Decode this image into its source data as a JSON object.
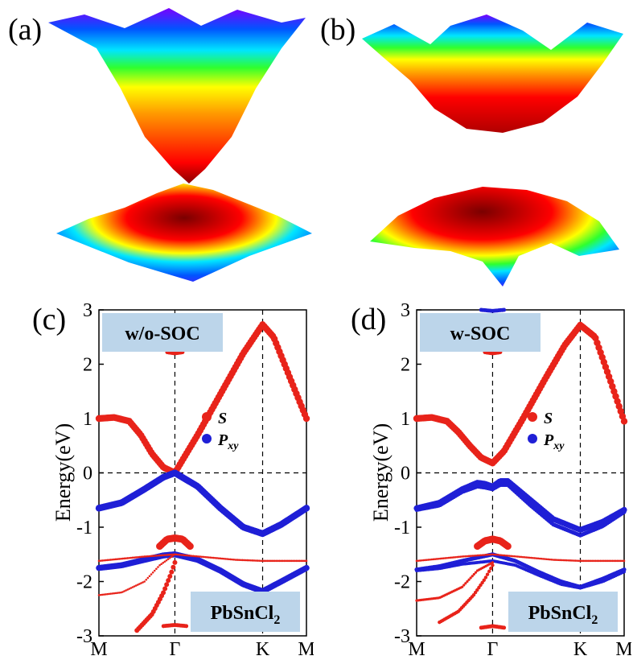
{
  "figure": {
    "panel_labels": [
      "(a)",
      "(b)",
      "(c)",
      "(d)"
    ],
    "colormap": [
      "#ff0000",
      "#ff7f00",
      "#ffff00",
      "#2fff2f",
      "#00e5ff",
      "#0055ff",
      "#6a00ff"
    ],
    "surface_panels": [
      {
        "label": "(a)",
        "gap": "closed"
      },
      {
        "label": "(b)",
        "gap": "open"
      }
    ]
  },
  "chart_data": [
    {
      "type": "scatter",
      "panel": "(c)",
      "condition_label": "w/o-SOC",
      "material": "PbSnCl",
      "material_subscript": "2",
      "ylabel": "Energy(eV)",
      "ylim": [
        -3,
        3
      ],
      "yticks": [
        "3",
        "2",
        "1",
        "0",
        "-1",
        "-2",
        "-3"
      ],
      "xticks": [
        "M",
        "Γ",
        "K",
        "M"
      ],
      "xpath": [
        0,
        1,
        2.155,
        2.732
      ],
      "fermi_level": 0,
      "legend": {
        "s": "S",
        "p": "P",
        "p_subscript": "xy"
      },
      "series_colors": {
        "s": "#e8231a",
        "p": "#1f1fd6"
      },
      "bands": [
        {
          "x": [
            0,
            0.2,
            0.4,
            0.55,
            0.7,
            0.85,
            1.0,
            1.3,
            1.6,
            1.9,
            2.155,
            2.3,
            2.5,
            2.732
          ],
          "y": [
            1.0,
            1.02,
            0.95,
            0.7,
            0.35,
            0.1,
            0.0,
            0.7,
            1.45,
            2.2,
            2.73,
            2.5,
            1.8,
            1.0
          ],
          "color": "s",
          "size": 4.2
        },
        {
          "x": [
            0,
            0.3,
            0.6,
            0.85,
            1.0,
            1.3,
            1.6,
            1.9,
            2.155,
            2.4,
            2.732
          ],
          "y": [
            -0.65,
            -0.55,
            -0.3,
            -0.08,
            0.0,
            -0.25,
            -0.65,
            -1.0,
            -1.12,
            -0.95,
            -0.65
          ],
          "color": "p",
          "size": 4.2
        },
        {
          "x": [
            0,
            0.3,
            0.6,
            0.85,
            1.0,
            1.3,
            1.6,
            1.9,
            2.155,
            2.4,
            2.732
          ],
          "y": [
            -1.75,
            -1.7,
            -1.6,
            -1.52,
            -1.5,
            -1.6,
            -1.8,
            -2.05,
            -2.18,
            -2.0,
            -1.75
          ],
          "color": "p",
          "size": 3.8
        },
        {
          "x": [
            0.8,
            0.9,
            1.0,
            1.1,
            1.2
          ],
          "y": [
            -1.35,
            -1.22,
            -1.2,
            -1.22,
            -1.35
          ],
          "color": "s",
          "size": 4.5
        },
        {
          "x": [
            0,
            0.3,
            0.6,
            1.0,
            1.4,
            1.8,
            2.155,
            2.5,
            2.732
          ],
          "y": [
            -1.62,
            -1.58,
            -1.54,
            -1.5,
            -1.55,
            -1.6,
            -1.62,
            -1.62,
            -1.62
          ],
          "color": "s",
          "size": 1.3
        },
        {
          "x": [
            0,
            0.3,
            0.6,
            0.8,
            1.0
          ],
          "y": [
            -2.25,
            -2.2,
            -2.0,
            -1.7,
            -1.5
          ],
          "color": "s",
          "size": 1.3
        },
        {
          "x": [
            0.5,
            0.7,
            0.85,
            0.95,
            1.0
          ],
          "y": [
            -2.9,
            -2.6,
            -2.2,
            -1.85,
            -1.65
          ],
          "color": "s",
          "size": 3.0
        },
        {
          "x": [
            0.9,
            1.0,
            1.1
          ],
          "y": [
            2.22,
            2.2,
            2.22
          ],
          "color": "s",
          "size": 2.5
        },
        {
          "x": [
            0.85,
            1.0,
            1.15
          ],
          "y": [
            -2.82,
            -2.8,
            -2.82
          ],
          "color": "s",
          "size": 2.5
        }
      ]
    },
    {
      "type": "scatter",
      "panel": "(d)",
      "condition_label": "w-SOC",
      "material": "PbSnCl",
      "material_subscript": "2",
      "ylabel": "Energy(eV)",
      "ylim": [
        -3,
        3
      ],
      "yticks": [
        "3",
        "2",
        "1",
        "0",
        "-1",
        "-2",
        "-3"
      ],
      "xticks": [
        "M",
        "Γ",
        "K",
        "M"
      ],
      "xpath": [
        0,
        1,
        2.155,
        2.732
      ],
      "fermi_level": 0,
      "legend": {
        "s": "S",
        "p": "P",
        "p_subscript": "xy"
      },
      "series_colors": {
        "s": "#e8231a",
        "p": "#1f1fd6"
      },
      "bands": [
        {
          "x": [
            0,
            0.2,
            0.4,
            0.55,
            0.7,
            0.85,
            1.0,
            1.15,
            1.4,
            1.7,
            1.95,
            2.155,
            2.35,
            2.55,
            2.732
          ],
          "y": [
            1.0,
            1.02,
            0.95,
            0.75,
            0.5,
            0.28,
            0.18,
            0.4,
            1.0,
            1.75,
            2.35,
            2.72,
            2.5,
            1.7,
            0.95
          ],
          "color": "s",
          "size": 4.2
        },
        {
          "x": [
            0,
            0.3,
            0.6,
            0.8,
            0.9,
            1.0,
            1.1,
            1.2,
            1.5,
            1.8,
            2.155,
            2.45,
            2.732
          ],
          "y": [
            -0.65,
            -0.55,
            -0.3,
            -0.18,
            -0.2,
            -0.25,
            -0.15,
            -0.15,
            -0.5,
            -0.85,
            -1.05,
            -0.9,
            -0.68
          ],
          "color": "p",
          "size": 3.6
        },
        {
          "x": [
            0,
            0.3,
            0.6,
            0.8,
            0.9,
            1.0,
            1.1,
            1.2,
            1.5,
            1.8,
            2.155,
            2.45,
            2.732
          ],
          "y": [
            -0.68,
            -0.6,
            -0.35,
            -0.25,
            -0.27,
            -0.3,
            -0.22,
            -0.22,
            -0.6,
            -0.95,
            -1.15,
            -0.98,
            -0.72
          ],
          "color": "p",
          "size": 2.6
        },
        {
          "x": [
            0,
            0.3,
            0.6,
            1.0,
            1.3,
            1.6,
            1.9,
            2.155,
            2.45,
            2.732
          ],
          "y": [
            -1.78,
            -1.72,
            -1.62,
            -1.5,
            -1.62,
            -1.82,
            -2.0,
            -2.1,
            -1.95,
            -1.78
          ],
          "color": "p",
          "size": 2.6
        },
        {
          "x": [
            0,
            0.3,
            0.6,
            1.0,
            1.3,
            1.6,
            1.9,
            2.155,
            2.45,
            2.732
          ],
          "y": [
            -1.8,
            -1.76,
            -1.68,
            -1.62,
            -1.7,
            -1.88,
            -2.05,
            -2.12,
            -2.0,
            -1.82
          ],
          "color": "p",
          "size": 2.0
        },
        {
          "x": [
            0.8,
            0.9,
            1.0,
            1.1,
            1.2
          ],
          "y": [
            -1.35,
            -1.25,
            -1.22,
            -1.25,
            -1.35
          ],
          "color": "s",
          "size": 4.5
        },
        {
          "x": [
            0,
            0.3,
            0.6,
            1.0,
            1.4,
            1.8,
            2.155,
            2.5,
            2.732
          ],
          "y": [
            -1.62,
            -1.58,
            -1.54,
            -1.5,
            -1.55,
            -1.6,
            -1.62,
            -1.62,
            -1.62
          ],
          "color": "s",
          "size": 1.3
        },
        {
          "x": [
            0,
            0.3,
            0.6,
            0.8,
            1.0
          ],
          "y": [
            -2.35,
            -2.3,
            -2.1,
            -1.8,
            -1.65
          ],
          "color": "s",
          "size": 1.6
        },
        {
          "x": [
            0.3,
            0.55,
            0.75,
            0.9,
            1.0
          ],
          "y": [
            -2.75,
            -2.55,
            -2.25,
            -1.95,
            -1.7
          ],
          "color": "s",
          "size": 2.2
        },
        {
          "x": [
            0.9,
            1.0,
            1.1
          ],
          "y": [
            2.22,
            2.2,
            2.22
          ],
          "color": "s",
          "size": 2.5
        },
        {
          "x": [
            0.85,
            1.0,
            1.15
          ],
          "y": [
            -2.85,
            -2.82,
            -2.85
          ],
          "color": "s",
          "size": 2.5
        },
        {
          "x": [
            0.85,
            1.0,
            1.15
          ],
          "y": [
            3.0,
            2.98,
            3.0
          ],
          "color": "p",
          "size": 2.5
        }
      ]
    }
  ]
}
